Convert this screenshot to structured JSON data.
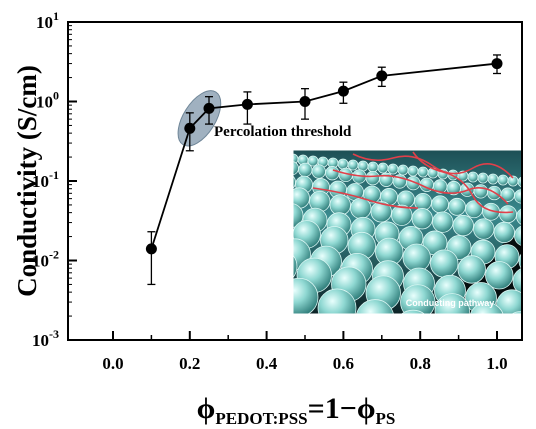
{
  "chart_data": {
    "type": "line",
    "y_scale": "log",
    "xlim": [
      0.0,
      1.05
    ],
    "ylim_log10": [
      -3,
      1
    ],
    "x_ticks": [
      0.0,
      0.2,
      0.4,
      0.6,
      0.8,
      1.0
    ],
    "x_tick_labels": [
      "0.0",
      "0.2",
      "0.4",
      "0.6",
      "0.8",
      "1.0"
    ],
    "y_ticks_log10": [
      -3,
      -2,
      -1,
      0,
      1
    ],
    "y_tick_bases": [
      "10",
      "10",
      "10",
      "10",
      "10"
    ],
    "y_tick_exponents": [
      "-3",
      "-2",
      "-1",
      "0",
      "1"
    ],
    "ylabel": "Conductivity (S/cm)",
    "xlabel": {
      "phi1": "ϕ",
      "sub1": "PEDOT:PSS",
      "middle": "=1−",
      "phi2": "ϕ",
      "sub2": "PS"
    },
    "series": [
      {
        "x": [
          0.1,
          0.2,
          0.25,
          0.35,
          0.5,
          0.6,
          0.7,
          1.0
        ],
        "y": [
          0.014,
          0.46,
          0.82,
          0.92,
          1.0,
          1.35,
          2.1,
          3.0
        ],
        "y_err_low": [
          0.005,
          0.24,
          0.52,
          0.52,
          0.6,
          0.95,
          1.55,
          2.25
        ],
        "y_err_high": [
          0.023,
          0.72,
          1.15,
          1.32,
          1.45,
          1.75,
          2.7,
          3.85
        ]
      }
    ],
    "grid": false,
    "annotation": "Percolation threshold",
    "inset_label": "Conducting pathway",
    "colors": {
      "line": "#000000",
      "marker": "#000000",
      "threshold_ellipse": "#8fa3b5",
      "sphere": "#8fd8d2",
      "pathway": "#e0404a"
    }
  }
}
